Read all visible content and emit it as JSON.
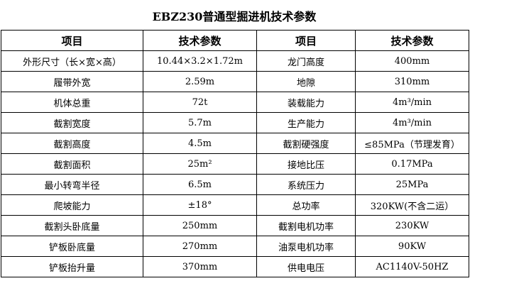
{
  "title": "EBZ230普通型掘进机技术参数",
  "headers": [
    "项目",
    "技术参数",
    "项目",
    "技术参数"
  ],
  "rows": [
    [
      "外形尺寸（长×宽×高）",
      "10.44×3.2×1.72m",
      "龙门高度",
      "400mm"
    ],
    [
      "履带外宽",
      "2.59m",
      "地隙",
      "310mm"
    ],
    [
      "机体总重",
      "72t",
      "装载能力",
      "4m³/min"
    ],
    [
      "截割宽度",
      "5.7m",
      "生产能力",
      "4m³/min"
    ],
    [
      "截割高度",
      "4.5m",
      "截割硬强度",
      "≤85MPa（节理发育）"
    ],
    [
      "截割面积",
      "25m²",
      "接地比压",
      "0.17MPa"
    ],
    [
      "最小转弯半径",
      "6.5m",
      "系统压力",
      "25MPa"
    ],
    [
      "爬坡能力",
      "±18°",
      "总功率",
      "320KW(不含二运）"
    ],
    [
      "截割头卧底量",
      "250mm",
      "截割电机功率",
      "230KW"
    ],
    [
      "铲板卧底量",
      "270mm",
      "油泵电机功率",
      "90KW"
    ],
    [
      "铲板抬升量",
      "370mm",
      "供电电压",
      "AC1140V-50HZ"
    ]
  ]
}
